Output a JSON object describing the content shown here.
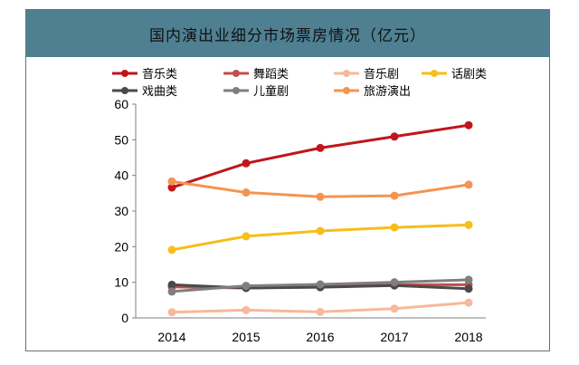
{
  "chart_data": {
    "type": "line",
    "title": "国内演出业细分市场票房情况（亿元）",
    "categories": [
      "2014",
      "2015",
      "2016",
      "2017",
      "2018"
    ],
    "ylim": [
      0,
      60
    ],
    "yticks": [
      0,
      10,
      20,
      30,
      40,
      50,
      60
    ],
    "grid": false,
    "legend_position": "top",
    "series": [
      {
        "name": "音乐类",
        "color": "#c0151c",
        "values": [
          36.6,
          43.4,
          47.7,
          50.9,
          54.1
        ]
      },
      {
        "name": "舞蹈类",
        "color": "#c0504d",
        "values": [
          8.7,
          8.4,
          8.8,
          9.3,
          9.3
        ]
      },
      {
        "name": "音乐剧",
        "color": "#f6b99a",
        "values": [
          1.6,
          2.2,
          1.7,
          2.6,
          4.3
        ]
      },
      {
        "name": "话剧类",
        "color": "#f6be1a",
        "values": [
          19.1,
          22.9,
          24.4,
          25.4,
          26.1
        ]
      },
      {
        "name": "戏曲类",
        "color": "#4a4a4a",
        "values": [
          9.3,
          8.4,
          8.6,
          9.1,
          8.2
        ]
      },
      {
        "name": "儿童剧",
        "color": "#7f7f7f",
        "values": [
          7.4,
          9.0,
          9.4,
          10.0,
          10.7
        ]
      },
      {
        "name": "旅游演出",
        "color": "#f39450",
        "values": [
          38.3,
          35.2,
          34.0,
          34.3,
          37.4
        ]
      }
    ]
  }
}
